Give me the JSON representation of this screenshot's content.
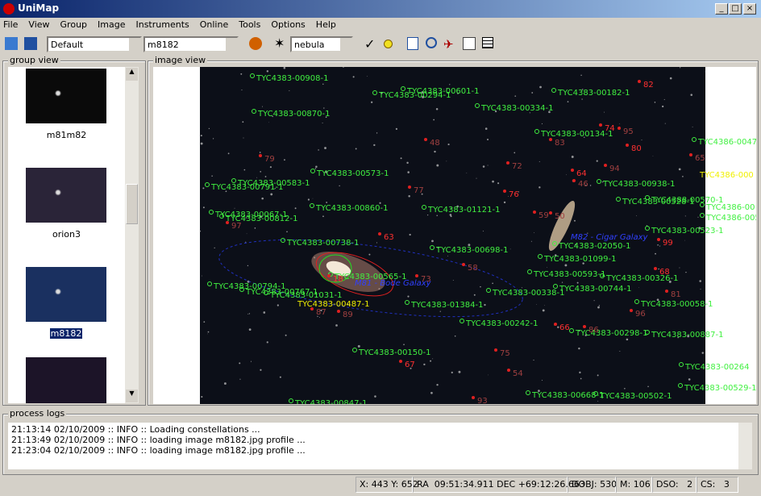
{
  "window": {
    "title": "UniMap"
  },
  "menu": [
    "File",
    "View",
    "Group",
    "Image",
    "Instruments",
    "Online",
    "Tools",
    "Options",
    "Help"
  ],
  "toolbar": {
    "profile": "Default",
    "image": "m8182",
    "object_type": "nebula"
  },
  "group_view": {
    "title": "group view",
    "items": [
      "m81m82",
      "orion3",
      "m8182"
    ]
  },
  "image_view": {
    "title": "image view",
    "catalog_stars": [
      "TYC4383-00908-1",
      "TYC4383-00601-1",
      "TYC4383-00294-1",
      "TYC4383-00182-1",
      "TYC4383-00334-1",
      "TYC4383-00870-1",
      "TYC4383-00134-1",
      "TYC4386-0047",
      "TYC4383-00573-1",
      "TYC4383-00583-1",
      "TYC4383-00791-1",
      "TYC4383-00938-1",
      "TYC4388-00570-1",
      "TYC4383-00528-1",
      "TYC4386-00",
      "TYC4386-0058",
      "TYC4383-00860-1",
      "TYC4383-01121-1",
      "TYC4383-00067-1",
      "TYC4383-00812-1",
      "TYC4383-00523-1",
      "TYC4383-00738-1",
      "TYC4383-02050-1",
      "TYC4383-00698-1",
      "TYC4383-01099-1",
      "TYC4383-00565-1",
      "TYC4383-00593-1",
      "TYC4383-00326-1",
      "TYC4383-00794-1",
      "TYC4383-00767-1",
      "TYC4383-01031-1",
      "TYC4383-00744-1",
      "TYC4383-00338-1",
      "TYC4383-01384-1",
      "TYC4383-00058-1",
      "TYC4383-00242-1",
      "TYC4383-00298-1",
      "TYC4383-00887-1",
      "TYC4383-00150-1",
      "TYC4383-00264",
      "TYC4383-00529-1",
      "TYC4383-00668-1",
      "TYC4383-00502-1",
      "TYC4383-00847-1"
    ],
    "highlighted_stars": [
      "TYC4386-000",
      "TYC4383-00487-1"
    ],
    "galaxies": [
      "M81 - Bode Galaxy",
      "M82 - Cigar Galaxy"
    ],
    "detections": [
      "82",
      "48",
      "79",
      "74",
      "95",
      "83",
      "80",
      "72",
      "94",
      "64",
      "46",
      "77",
      "76",
      "65",
      "97",
      "63",
      "59",
      "50",
      "99",
      "58",
      "73",
      "18",
      "87",
      "89",
      "68",
      "81",
      "96",
      "66",
      "86",
      "75",
      "67",
      "54",
      "93"
    ]
  },
  "process_logs": {
    "title": "process logs",
    "lines": [
      "21:13:14 02/10/2009 :: INFO :: Loading constellations ...",
      "21:13:49 02/10/2009 :: INFO :: loading image m8182.jpg profile ...",
      "21:23:04 02/10/2009 :: INFO :: loading image m8182.jpg profile ..."
    ]
  },
  "status_bar": [
    "X: 443 Y: 652",
    "RA  09:51:34.911 DEC +69:12:26.663",
    "DOBJ: 530",
    "M: 106",
    "DSO:   2",
    "CS:   3"
  ]
}
